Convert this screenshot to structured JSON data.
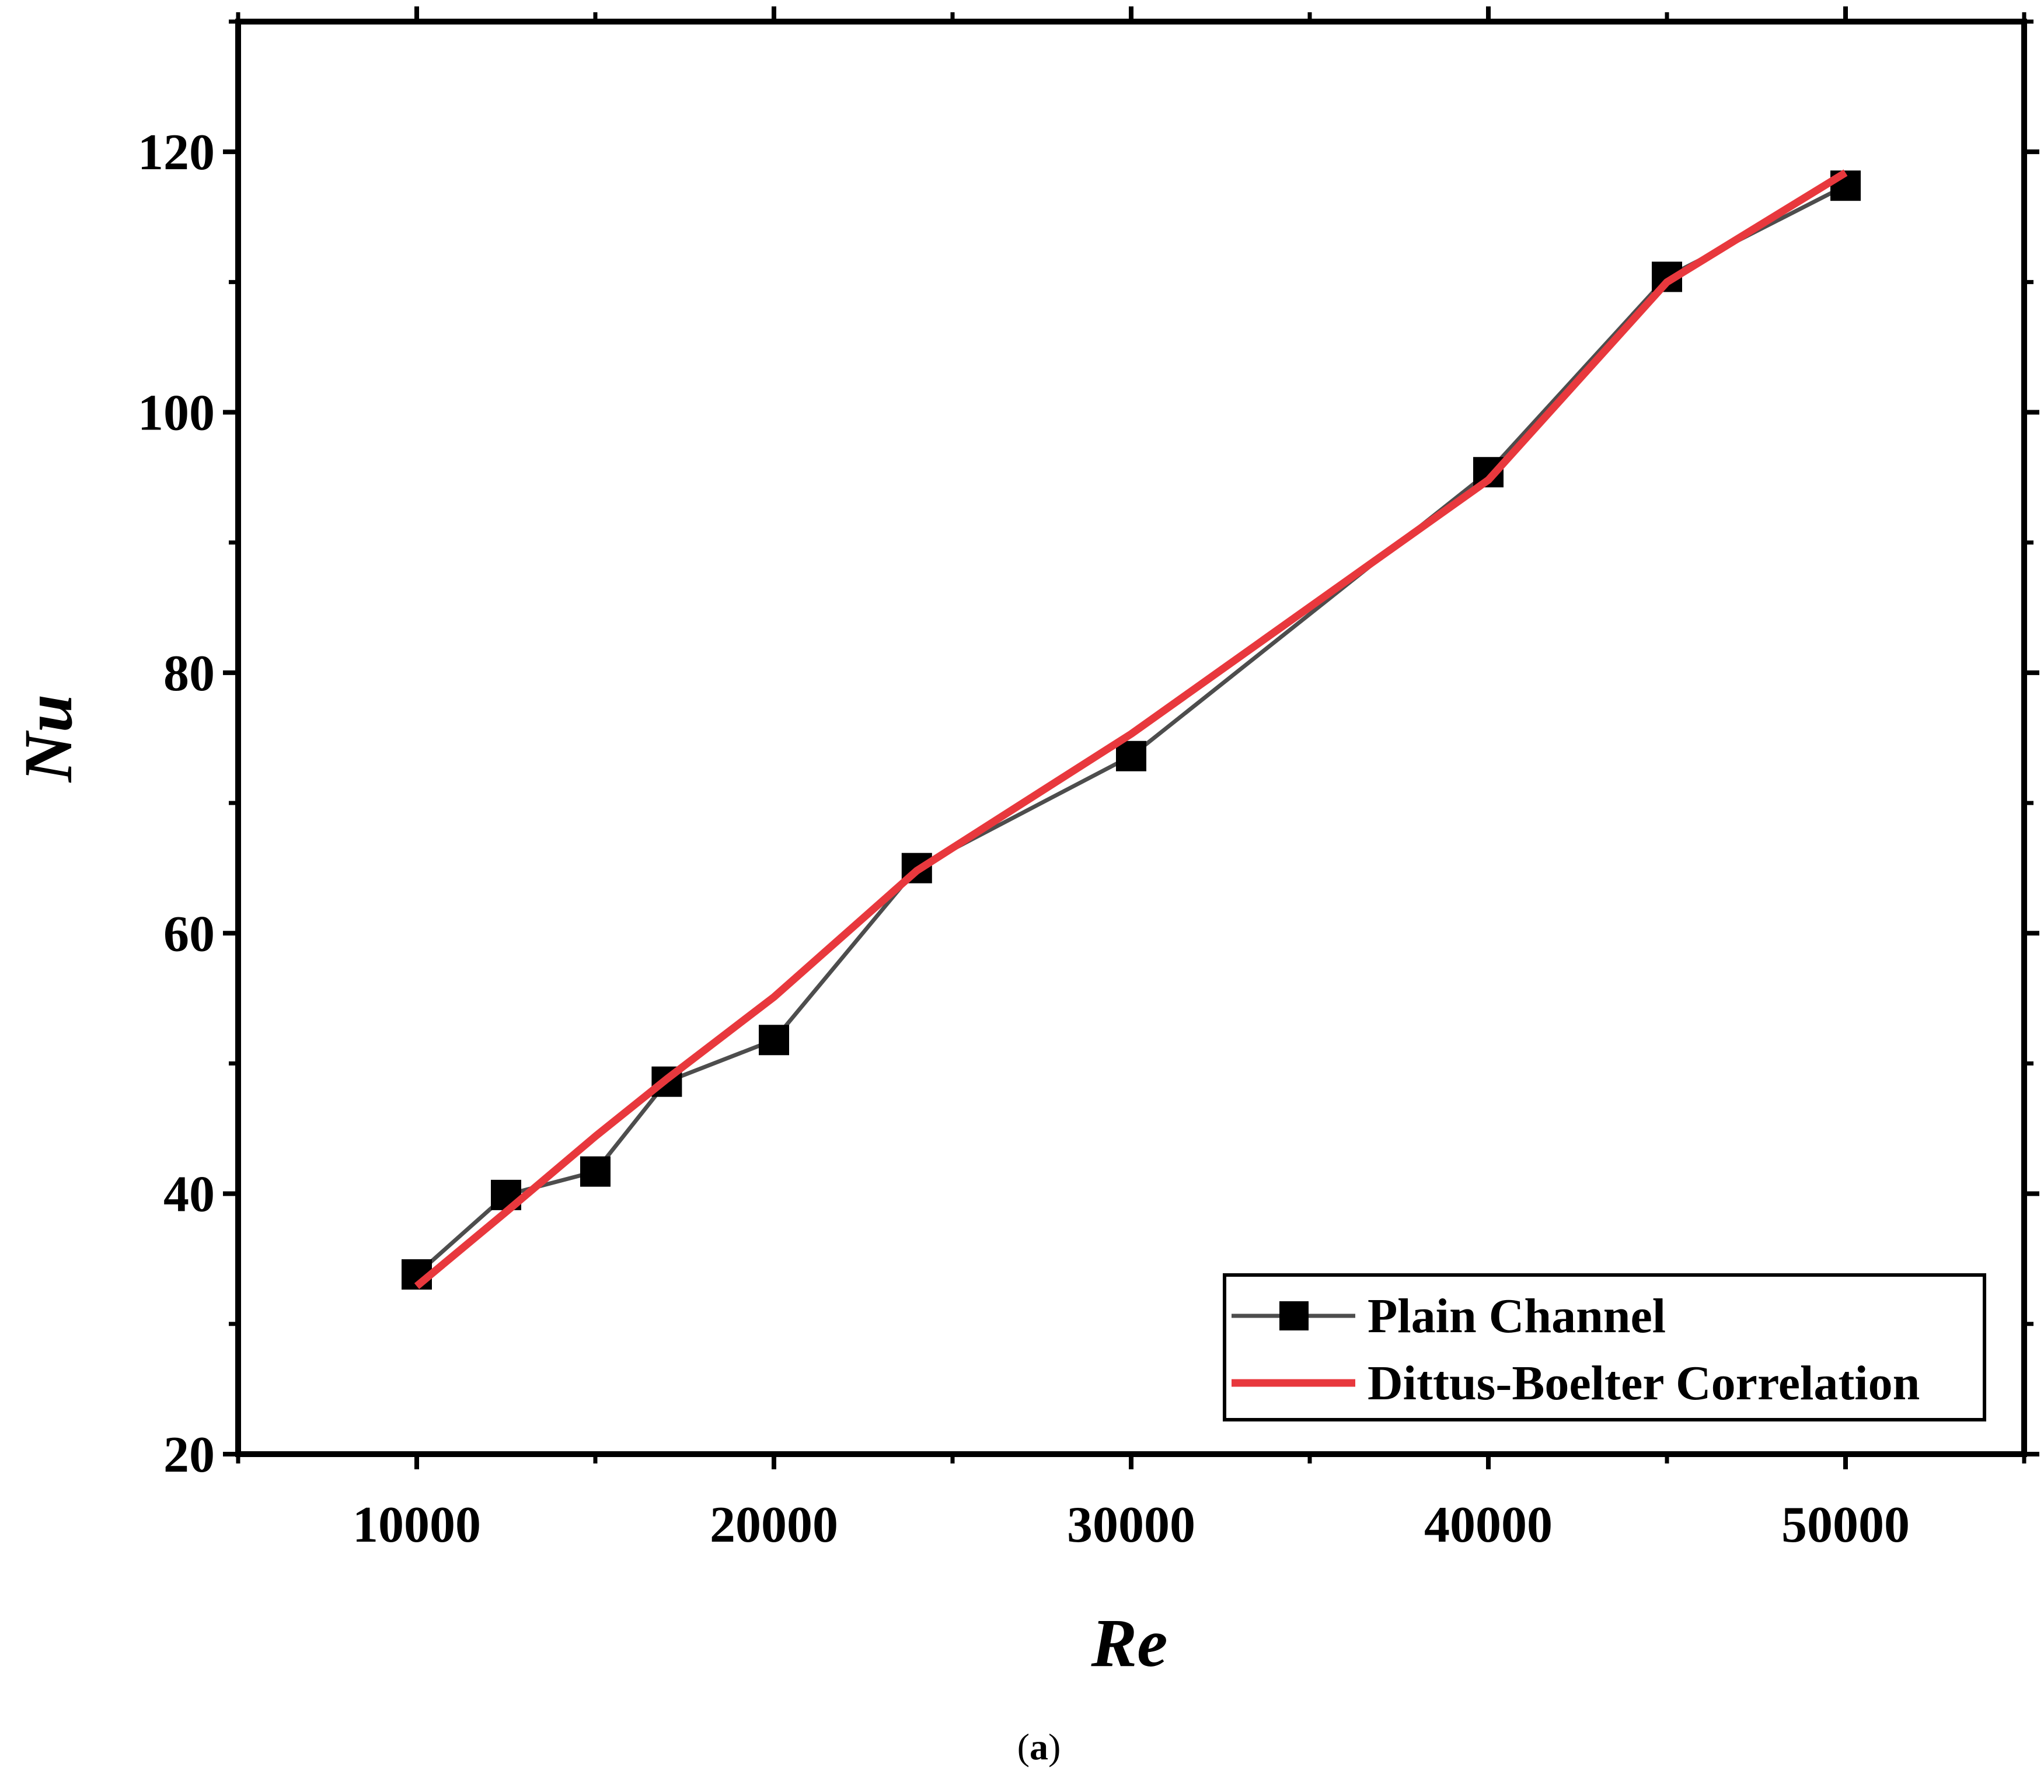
{
  "chart_data": {
    "type": "line",
    "title": "",
    "xlabel": "Re",
    "ylabel": "Nu",
    "xlim": [
      5000,
      55000
    ],
    "ylim": [
      20,
      130
    ],
    "x_ticks": [
      10000,
      20000,
      30000,
      40000,
      50000
    ],
    "x_tick_labels": [
      "10000",
      "20000",
      "30000",
      "40000",
      "50000"
    ],
    "y_ticks": [
      20,
      40,
      60,
      80,
      100,
      120
    ],
    "y_tick_labels": [
      "20",
      "40",
      "60",
      "80",
      "100",
      "120"
    ],
    "grid": false,
    "legend_position": "bottom-right",
    "series": [
      {
        "name": "Plain Channel",
        "color": "#4d4d4d",
        "marker": "square",
        "marker_color": "#000000",
        "x": [
          10000,
          12500,
          15000,
          17000,
          20000,
          24000,
          30000,
          40000,
          45000,
          50000
        ],
        "y": [
          33.8,
          39.9,
          41.7,
          48.6,
          51.8,
          65.0,
          73.6,
          95.4,
          110.4,
          117.4
        ]
      },
      {
        "name": "Dittus-Boelter Correlation",
        "color": "#e8383d",
        "marker": "none",
        "x": [
          10000,
          12500,
          15000,
          17000,
          20000,
          24000,
          30000,
          40000,
          45000,
          50000
        ],
        "y": [
          32.9,
          38.6,
          44.4,
          48.8,
          55.1,
          64.8,
          75.3,
          94.8,
          110.0,
          118.4
        ]
      }
    ]
  },
  "caption": {
    "open": "(",
    "letter": "a",
    "close": ")"
  }
}
